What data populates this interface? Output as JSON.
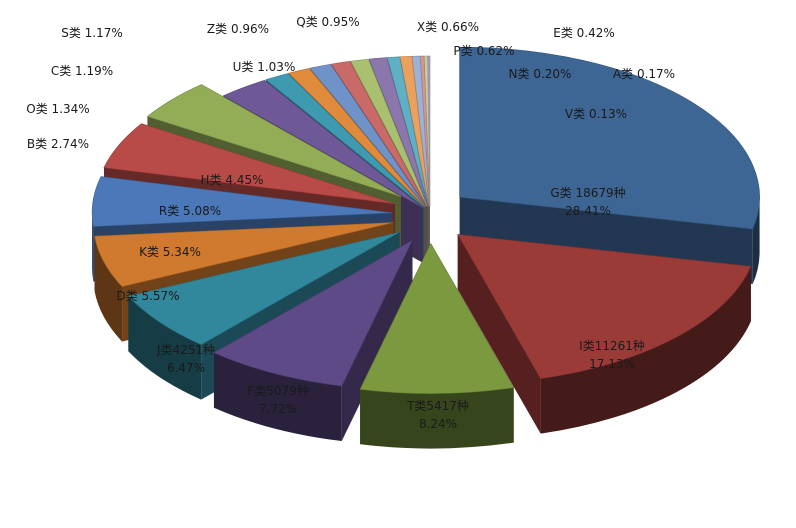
{
  "chart_data": {
    "type": "pie",
    "title": "",
    "style": "3d-exploded",
    "legend": "none",
    "slices": [
      {
        "name": "G类",
        "value": 28.41,
        "count_label": "18679种",
        "color": "#3d6695",
        "label": "G类 18679种",
        "pct_label": "28.41%"
      },
      {
        "name": "I类",
        "value": 17.13,
        "count_label": "11261种",
        "color": "#9a3b38",
        "label": "I类11261种",
        "pct_label": "17.13%"
      },
      {
        "name": "T类",
        "value": 8.24,
        "count_label": "5417种",
        "color": "#7b9a40",
        "label": "T类5417种",
        "pct_label": "8.24%"
      },
      {
        "name": "F类",
        "value": 7.72,
        "count_label": "5079种",
        "color": "#5e4a86",
        "label": "F类5079种",
        "pct_label": "7.72%"
      },
      {
        "name": "J类",
        "value": 6.47,
        "count_label": "4251种",
        "color": "#31879c",
        "label": "J类4251种",
        "pct_label": "6.47%"
      },
      {
        "name": "D类",
        "value": 5.57,
        "color": "#cf7a2e",
        "label": "D类 5.57%"
      },
      {
        "name": "K类",
        "value": 5.34,
        "color": "#4a78b8",
        "label": "K类 5.34%"
      },
      {
        "name": "R类",
        "value": 5.08,
        "color": "#b84a48",
        "label": "R类 5.08%"
      },
      {
        "name": "H类",
        "value": 4.45,
        "color": "#93ad57",
        "label": "H类 4.45%"
      },
      {
        "name": "B类",
        "value": 2.74,
        "color": "#6e5898",
        "label": "B类 2.74%"
      },
      {
        "name": "O类",
        "value": 1.34,
        "color": "#3e9ab0",
        "label": "O类 1.34%"
      },
      {
        "name": "C类",
        "value": 1.19,
        "color": "#e08a3c",
        "label": "C类 1.19%"
      },
      {
        "name": "S类",
        "value": 1.17,
        "color": "#6f93c8",
        "label": "S类 1.17%"
      },
      {
        "name": "U类",
        "value": 1.03,
        "color": "#c96a68",
        "label": "U类 1.03%"
      },
      {
        "name": "Z类",
        "value": 0.96,
        "color": "#a8c070",
        "label": "Z类 0.96%"
      },
      {
        "name": "Q类",
        "value": 0.95,
        "color": "#8c77ad",
        "label": "Q类 0.95%"
      },
      {
        "name": "X类",
        "value": 0.66,
        "color": "#5fb0c4",
        "label": "X类 0.66%"
      },
      {
        "name": "P类",
        "value": 0.62,
        "color": "#eba05e",
        "label": "P类 0.62%"
      },
      {
        "name": "E类",
        "value": 0.42,
        "color": "#9bb1d6",
        "label": "E类 0.42%"
      },
      {
        "name": "N类",
        "value": 0.2,
        "color": "#d89391",
        "label": "N类 0.20%"
      },
      {
        "name": "A类",
        "value": 0.17,
        "color": "#c0d49a",
        "label": "A类 0.17%"
      },
      {
        "name": "V类",
        "value": 0.13,
        "color": "#aa9ac4",
        "label": "V类 0.13%"
      }
    ]
  }
}
